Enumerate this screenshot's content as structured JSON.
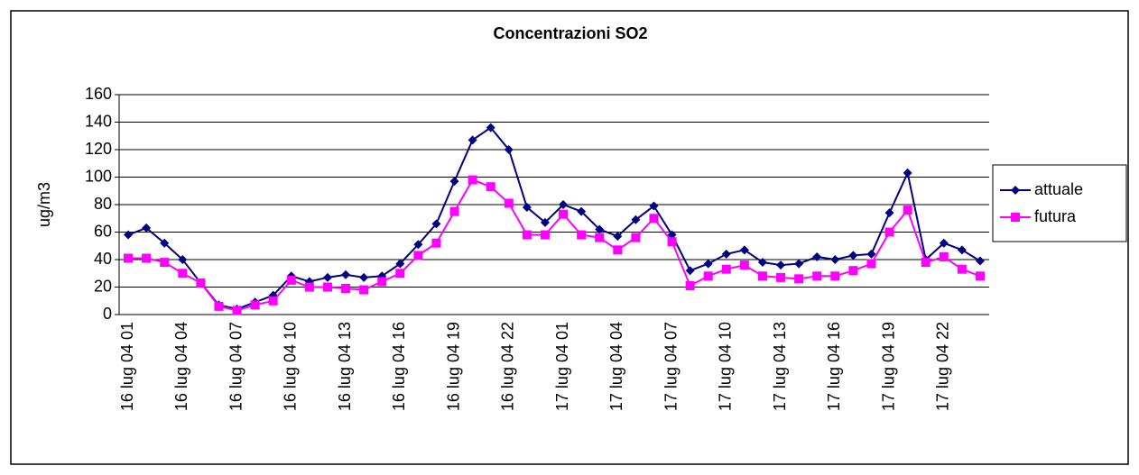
{
  "chart_data": {
    "type": "line",
    "title": "Concentrazioni SO2",
    "y_label": "ug/m3",
    "categories": [
      "16 lug 04 01",
      null,
      null,
      "16 lug 04 04",
      null,
      null,
      "16 lug 04 07",
      null,
      null,
      "16 lug 04 10",
      null,
      null,
      "16 lug 04 13",
      null,
      null,
      "16 lug 04 16",
      null,
      null,
      "16 lug 04 19",
      null,
      null,
      "16 lug 04 22",
      null,
      null,
      "17 lug 04 01",
      null,
      null,
      "17 lug 04 04",
      null,
      null,
      "17 lug 04 07",
      null,
      null,
      "17 lug 04 10",
      null,
      null,
      "17 lug 04 13",
      null,
      null,
      "17 lug 04 16",
      null,
      null,
      "17 lug 04 19",
      null,
      null,
      "17 lug 04 22",
      null,
      null
    ],
    "series": [
      {
        "name": "attuale",
        "color": "#000080",
        "marker": "diamond",
        "values": [
          58,
          63,
          52,
          40,
          23,
          7,
          4,
          9,
          14,
          28,
          24,
          27,
          29,
          27,
          28,
          37,
          51,
          66,
          97,
          127,
          136,
          120,
          78,
          67,
          80,
          75,
          62,
          57,
          69,
          79,
          58,
          32,
          37,
          44,
          47,
          38,
          36,
          37,
          42,
          40,
          43,
          44,
          74,
          103,
          40,
          52,
          47,
          39
        ]
      },
      {
        "name": "futura",
        "color": "#FF00FF",
        "marker": "square",
        "values": [
          41,
          41,
          38,
          30,
          23,
          6,
          3,
          7,
          10,
          25,
          20,
          20,
          19,
          18,
          24,
          30,
          43,
          52,
          75,
          98,
          93,
          81,
          58,
          58,
          73,
          58,
          56,
          47,
          56,
          70,
          53,
          21,
          28,
          33,
          36,
          28,
          27,
          26,
          28,
          28,
          32,
          37,
          60,
          76,
          38,
          42,
          33,
          28
        ]
      }
    ],
    "ylim": [
      0,
      160
    ],
    "yticks": [
      0,
      20,
      40,
      60,
      80,
      100,
      120,
      140,
      160
    ],
    "grid": true,
    "legend": "right"
  }
}
